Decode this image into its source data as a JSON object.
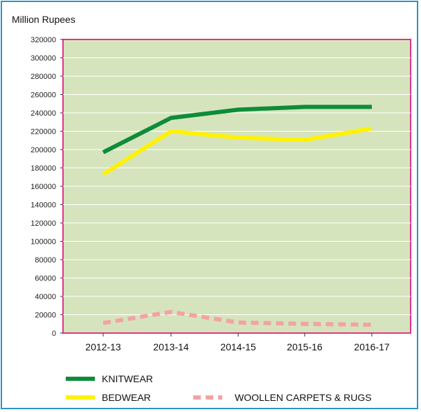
{
  "chart_data": {
    "type": "line",
    "unit_label": "Million Rupees",
    "categories": [
      "2012-13",
      "2013-14",
      "2014-15",
      "2015-16",
      "2016-17"
    ],
    "yticks": [
      0,
      20000,
      40000,
      60000,
      80000,
      100000,
      120000,
      140000,
      160000,
      180000,
      200000,
      220000,
      240000,
      260000,
      280000,
      300000,
      320000
    ],
    "ylim": [
      0,
      320000
    ],
    "series": [
      {
        "name": "KNITWEAR",
        "color": "#0e8c3a",
        "dashed": false,
        "values": [
          197000,
          234500,
          243500,
          246500,
          246500
        ]
      },
      {
        "name": "BEDWEAR",
        "color": "#fff200",
        "dashed": false,
        "values": [
          173000,
          220000,
          213000,
          210500,
          223000
        ]
      },
      {
        "name": "WOOLLEN CARPETS & RUGS",
        "color": "#f3a3a3",
        "dashed": true,
        "values": [
          11000,
          23000,
          11500,
          10000,
          9000
        ]
      }
    ],
    "grid": "horizontal",
    "legend": "bottom",
    "plot_background": "#d6e4bd",
    "plot_border": "#e0338a"
  }
}
